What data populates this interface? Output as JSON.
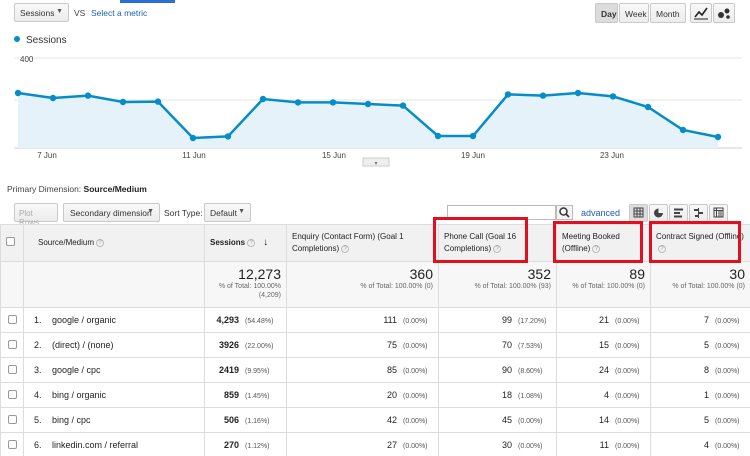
{
  "toolbar": {
    "metric": "Sessions",
    "vs": "VS",
    "select_metric": "Select a metric",
    "granularity": [
      "Day",
      "Week",
      "Month"
    ],
    "active_granularity": "Day"
  },
  "chart_data": {
    "type": "area",
    "series": [
      {
        "name": "Sessions",
        "values": [
          275,
          250,
          262,
          230,
          232,
          50,
          58,
          245,
          228,
          228,
          220,
          212,
          60,
          60,
          268,
          262,
          275,
          258,
          205,
          90,
          55
        ]
      }
    ],
    "x_tick_labels": [
      "7 Jun",
      "11 Jun",
      "15 Jun",
      "19 Jun",
      "23 Jun"
    ],
    "y_tick_labels": [
      "400",
      "200"
    ],
    "ylim": [
      0,
      450
    ],
    "grid": true,
    "color": "#058dc7"
  },
  "report": {
    "primary_dimension_label": "Primary Dimension:",
    "primary_dimension_value": "Source/Medium",
    "plot_rows": "Plot Rows",
    "secondary_dimension": "Secondary dimension",
    "sort_type_label": "Sort Type:",
    "sort_type_value": "Default",
    "advanced": "advanced"
  },
  "table": {
    "headers": {
      "source": "Source/Medium",
      "sessions": "Sessions",
      "enquiry": "Enquiry (Contact Form) (Goal 1 Completions)",
      "phone": "Phone Call (Goal 16 Completions)",
      "meeting": "Meeting Booked (Offline)",
      "contract": "Contract Signed (Offline)"
    },
    "totals": {
      "sessions": "12,273",
      "sessions_pct": "% of Total: 100.00%",
      "sessions_abs": "(4,209)",
      "enquiry": "360",
      "enquiry_pct": "% of Total: 100.00% (0)",
      "phone": "352",
      "phone_pct": "% of Total: 100.00% (93)",
      "meeting": "89",
      "meeting_pct": "% of Total: 100.00% (0)",
      "contract": "30",
      "contract_pct": "% of Total: 100.00% (0)"
    },
    "rows": [
      {
        "idx": "1.",
        "source": "google / organic",
        "sessions": "4,293",
        "sessions_pct": "(54.48%)",
        "enquiry": "111",
        "enquiry_pct": "(0.00%)",
        "phone": "99",
        "phone_pct": "(17.20%)",
        "meeting": "21",
        "meeting_pct": "(0.00%)",
        "contract": "7",
        "contract_pct": "(0.00%)"
      },
      {
        "idx": "2.",
        "source": "(direct) / (none)",
        "sessions": "3926",
        "sessions_pct": "(22.00%)",
        "enquiry": "75",
        "enquiry_pct": "(0.00%)",
        "phone": "70",
        "phone_pct": "(7.53%)",
        "meeting": "15",
        "meeting_pct": "(0.00%)",
        "contract": "5",
        "contract_pct": "(0.00%)"
      },
      {
        "idx": "3.",
        "source": "google / cpc",
        "sessions": "2419",
        "sessions_pct": "(9.95%)",
        "enquiry": "85",
        "enquiry_pct": "(0.00%)",
        "phone": "90",
        "phone_pct": "(8.60%)",
        "meeting": "24",
        "meeting_pct": "(0.00%)",
        "contract": "8",
        "contract_pct": "(0.00%)"
      },
      {
        "idx": "4.",
        "source": "bing / organic",
        "sessions": "859",
        "sessions_pct": "(1.45%)",
        "enquiry": "20",
        "enquiry_pct": "(0.00%)",
        "phone": "18",
        "phone_pct": "(1.08%)",
        "meeting": "4",
        "meeting_pct": "(0.00%)",
        "contract": "1",
        "contract_pct": "(0.00%)"
      },
      {
        "idx": "5.",
        "source": "bing / cpc",
        "sessions": "506",
        "sessions_pct": "(1.16%)",
        "enquiry": "42",
        "enquiry_pct": "(0.00%)",
        "phone": "45",
        "phone_pct": "(0.00%)",
        "meeting": "14",
        "meeting_pct": "(0.00%)",
        "contract": "5",
        "contract_pct": "(0.00%)"
      },
      {
        "idx": "6.",
        "source": "linkedin.com / referral",
        "sessions": "270",
        "sessions_pct": "(1.12%)",
        "enquiry": "27",
        "enquiry_pct": "(0.00%)",
        "phone": "30",
        "phone_pct": "(0.00%)",
        "meeting": "11",
        "meeting_pct": "(0.00%)",
        "contract": "4",
        "contract_pct": "(0.00%)"
      }
    ]
  },
  "colors": {
    "series": "#058dc7",
    "highlight": "#e01020",
    "link": "#1a5fb4"
  }
}
